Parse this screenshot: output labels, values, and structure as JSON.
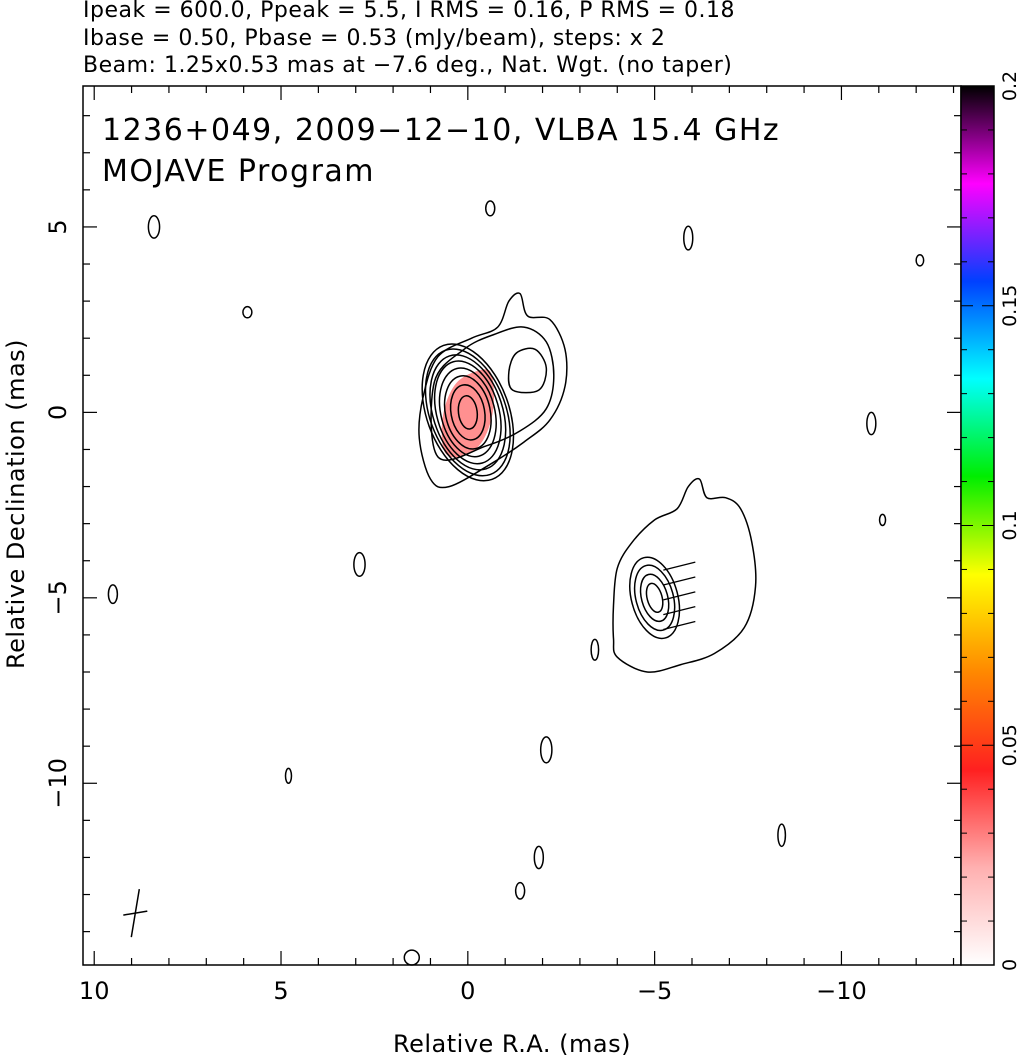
{
  "header": {
    "line1": "Ipeak = 600.0, Ppeak = 5.5, I RMS = 0.16, P RMS = 0.18",
    "line2": "Ibase = 0.50, Pbase = 0.53 (mJy/beam), steps: x 2",
    "line3": "Beam: 1.25x0.53 mas at −7.6 deg., Nat. Wgt. (no taper)"
  },
  "chart_data": {
    "type": "contour",
    "title": "1236+049, 2009−12−10, VLBA 15.4 GHz",
    "subtitle": "MOJAVE Program",
    "xlabel": "Relative R.A. (mas)",
    "ylabel": "Relative Declination (mas)",
    "xlim": [
      10.3,
      -13.2
    ],
    "ylim": [
      -14.9,
      8.8
    ],
    "x_ticks": [
      10,
      5,
      0,
      -5,
      -10
    ],
    "x_tick_labels": [
      "10",
      "5",
      "0",
      "−5",
      "−10"
    ],
    "y_ticks": [
      5,
      0,
      -5,
      -10
    ],
    "y_tick_labels": [
      "5",
      "0",
      "−5",
      "−10"
    ],
    "colorbar": {
      "range": [
        0,
        0.2
      ],
      "ticks": [
        0,
        0.05,
        0.1,
        0.15,
        0.2
      ],
      "tick_labels": [
        "0",
        "0.05",
        "0.1",
        "0.15",
        "0.2"
      ],
      "colors": [
        "#ffffff",
        "#ffb0b0",
        "#ff2020",
        "#ff8800",
        "#ffff00",
        "#00ee00",
        "#00ffff",
        "#0040ff",
        "#ff00ff",
        "#000000"
      ]
    },
    "contour_color": "#000000",
    "contour_groups": [
      {
        "name": "core",
        "center": [
          0.0,
          0.0
        ],
        "levels": [
          {
            "rx": 0.25,
            "ry": 0.45,
            "angle": -7
          },
          {
            "rx": 0.45,
            "ry": 0.75,
            "angle": -10
          },
          {
            "rx": 0.6,
            "ry": 1.0,
            "angle": -12
          },
          {
            "rx": 0.72,
            "ry": 1.22,
            "angle": -14
          },
          {
            "rx": 0.83,
            "ry": 1.42,
            "angle": -16
          },
          {
            "rx": 0.93,
            "ry": 1.6,
            "angle": -18
          },
          {
            "rx": 1.02,
            "ry": 1.78,
            "angle": -20
          },
          {
            "rx": 1.1,
            "ry": 1.92,
            "angle": -20
          }
        ]
      },
      {
        "name": "secondary",
        "center": [
          -5.0,
          -5.0
        ],
        "levels": [
          {
            "rx": 0.2,
            "ry": 0.4,
            "angle": -15
          },
          {
            "rx": 0.35,
            "ry": 0.65,
            "angle": -15
          },
          {
            "rx": 0.5,
            "ry": 0.9,
            "angle": -15
          },
          {
            "rx": 0.62,
            "ry": 1.12,
            "angle": -15
          }
        ]
      }
    ],
    "outer_contours": [
      {
        "name": "core-jet-outer",
        "points": [
          [
            1.0,
            -1.8
          ],
          [
            0.5,
            -2.0
          ],
          [
            -0.6,
            -1.4
          ],
          [
            -1.5,
            -0.8
          ],
          [
            -2.2,
            -0.2
          ],
          [
            -2.6,
            0.7
          ],
          [
            -2.6,
            1.7
          ],
          [
            -2.2,
            2.5
          ],
          [
            -1.6,
            2.6
          ],
          [
            -1.4,
            3.2
          ],
          [
            -1.1,
            3.0
          ],
          [
            -0.8,
            2.3
          ],
          [
            -0.1,
            2.0
          ],
          [
            0.8,
            1.5
          ],
          [
            1.2,
            0.4
          ],
          [
            1.3,
            -0.7
          ]
        ]
      },
      {
        "name": "core-jet-mid",
        "points": [
          [
            0.8,
            -1.2
          ],
          [
            -0.5,
            -0.9
          ],
          [
            -1.4,
            -0.5
          ],
          [
            -2.1,
            0.1
          ],
          [
            -2.3,
            1.0
          ],
          [
            -2.1,
            1.9
          ],
          [
            -1.5,
            2.3
          ],
          [
            -0.7,
            2.1
          ],
          [
            0.1,
            1.7
          ],
          [
            0.9,
            0.8
          ]
        ]
      },
      {
        "name": "jet-hole",
        "points": [
          [
            -1.2,
            0.6
          ],
          [
            -1.9,
            0.6
          ],
          [
            -2.1,
            1.2
          ],
          [
            -1.8,
            1.7
          ],
          [
            -1.3,
            1.6
          ],
          [
            -1.1,
            1.1
          ]
        ]
      },
      {
        "name": "secondary-outer",
        "points": [
          [
            -4.0,
            -6.6
          ],
          [
            -4.8,
            -7.0
          ],
          [
            -5.7,
            -6.8
          ],
          [
            -6.6,
            -6.5
          ],
          [
            -7.4,
            -5.8
          ],
          [
            -7.7,
            -4.7
          ],
          [
            -7.6,
            -3.5
          ],
          [
            -7.3,
            -2.6
          ],
          [
            -6.9,
            -2.3
          ],
          [
            -6.4,
            -2.3
          ],
          [
            -6.2,
            -1.8
          ],
          [
            -5.9,
            -2.0
          ],
          [
            -5.6,
            -2.6
          ],
          [
            -5.0,
            -2.9
          ],
          [
            -4.4,
            -3.5
          ],
          [
            -4.0,
            -4.2
          ],
          [
            -3.9,
            -5.2
          ],
          [
            -3.9,
            -6.1
          ]
        ]
      }
    ],
    "polarization_patch": {
      "center": [
        0.0,
        0.0
      ],
      "color": "#ff9090",
      "points": [
        [
          0.6,
          -1.1
        ],
        [
          0.2,
          -1.2
        ],
        [
          -0.3,
          -0.9
        ],
        [
          -0.6,
          -0.3
        ],
        [
          -0.7,
          0.4
        ],
        [
          -0.6,
          1.1
        ],
        [
          -0.2,
          1.1
        ],
        [
          0.3,
          0.8
        ],
        [
          0.6,
          0.2
        ],
        [
          0.7,
          -0.5
        ]
      ]
    },
    "noise_contours": [
      [
        8.4,
        5.0,
        0.15,
        0.3
      ],
      [
        5.9,
        2.7,
        0.12,
        0.15
      ],
      [
        -0.6,
        5.5,
        0.12,
        0.2
      ],
      [
        -5.9,
        4.7,
        0.12,
        0.32
      ],
      [
        -12.1,
        4.1,
        0.1,
        0.15
      ],
      [
        -10.8,
        -0.3,
        0.12,
        0.3
      ],
      [
        -11.1,
        -2.9,
        0.08,
        0.15
      ],
      [
        2.9,
        -4.1,
        0.15,
        0.32
      ],
      [
        9.5,
        -4.9,
        0.12,
        0.25
      ],
      [
        -3.4,
        -6.4,
        0.1,
        0.28
      ],
      [
        -2.1,
        -9.1,
        0.15,
        0.35
      ],
      [
        4.8,
        -9.8,
        0.08,
        0.2
      ],
      [
        -8.4,
        -11.4,
        0.1,
        0.3
      ],
      [
        -1.9,
        -12.0,
        0.12,
        0.3
      ],
      [
        -1.4,
        -12.9,
        0.12,
        0.22
      ],
      [
        1.5,
        -14.7,
        0.2,
        0.2
      ]
    ]
  }
}
